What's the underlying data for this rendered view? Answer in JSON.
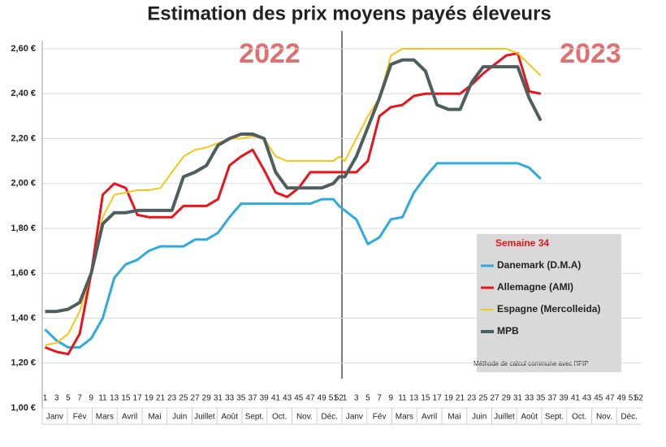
{
  "chart_data": {
    "type": "line",
    "title": "Estimation des prix moyens payés éleveurs",
    "years": [
      "2022",
      "2023"
    ],
    "categories": [
      "1",
      "3",
      "5",
      "7",
      "9",
      "11",
      "13",
      "15",
      "17",
      "19",
      "21",
      "23",
      "25",
      "27",
      "29",
      "31",
      "33",
      "35",
      "37",
      "39",
      "41",
      "43",
      "45",
      "47",
      "49",
      "51",
      "52",
      "1",
      "3",
      "5",
      "7",
      "9",
      "11",
      "13",
      "15",
      "17",
      "19",
      "21",
      "23",
      "25",
      "27",
      "29",
      "31",
      "33",
      "35",
      "37",
      "39",
      "41",
      "43",
      "45",
      "47",
      "49",
      "51",
      "52"
    ],
    "months": [
      "Janv",
      "Fév",
      "Mars",
      "Avril",
      "Mai",
      "Juin",
      "Juillet",
      "Août",
      "Sept.",
      "Oct.",
      "Nov.",
      "Déc."
    ],
    "legend_title": "Semaine 34",
    "note": "Méthode de calcul commune avec l'IFIP",
    "series": [
      {
        "name": "Danemark (D.M.A)",
        "color": "#2eaadc",
        "width": 3,
        "values": [
          1.35,
          1.3,
          1.27,
          1.27,
          1.31,
          1.4,
          1.58,
          1.64,
          1.66,
          1.7,
          1.72,
          1.72,
          1.72,
          1.75,
          1.75,
          1.78,
          1.85,
          1.91,
          1.91,
          1.91,
          1.91,
          1.91,
          1.91,
          1.91,
          1.93,
          1.93,
          1.9,
          1.88,
          1.84,
          1.73,
          1.76,
          1.84,
          1.85,
          1.96,
          2.03,
          2.09,
          2.09,
          2.09,
          2.09,
          2.09,
          2.09,
          2.09,
          2.09,
          2.07,
          2.02,
          null,
          null,
          null,
          null,
          null,
          null,
          null,
          null,
          null
        ]
      },
      {
        "name": "Allemagne (AMI)",
        "color": "#e8141c",
        "width": 3,
        "values": [
          1.27,
          1.25,
          1.24,
          1.33,
          1.6,
          1.95,
          2.0,
          1.98,
          1.86,
          1.85,
          1.85,
          1.85,
          1.9,
          1.9,
          1.9,
          1.93,
          2.08,
          2.12,
          2.15,
          2.06,
          1.96,
          1.94,
          1.98,
          2.05,
          2.05,
          2.05,
          2.05,
          2.05,
          2.05,
          2.1,
          2.3,
          2.34,
          2.35,
          2.39,
          2.4,
          2.4,
          2.4,
          2.4,
          2.44,
          2.49,
          2.53,
          2.57,
          2.58,
          2.41,
          2.4,
          null,
          null,
          null,
          null,
          null,
          null,
          null,
          null,
          null
        ]
      },
      {
        "name": "Espagne (Mercolleida)",
        "color": "#f5c518",
        "width": 2,
        "values": [
          1.28,
          1.29,
          1.33,
          1.43,
          1.6,
          1.85,
          1.95,
          1.96,
          1.97,
          1.97,
          1.98,
          2.05,
          2.12,
          2.15,
          2.16,
          2.18,
          2.2,
          2.2,
          2.21,
          2.2,
          2.12,
          2.1,
          2.1,
          2.1,
          2.1,
          2.1,
          2.12,
          2.1,
          2.2,
          2.3,
          2.38,
          2.57,
          2.6,
          2.6,
          2.6,
          2.6,
          2.6,
          2.6,
          2.6,
          2.6,
          2.6,
          2.6,
          2.58,
          2.53,
          2.48,
          null,
          null,
          null,
          null,
          null,
          null,
          null,
          null,
          null
        ]
      },
      {
        "name": "MPB",
        "color": "#4d5e5e",
        "width": 4,
        "values": [
          1.43,
          1.43,
          1.44,
          1.47,
          1.6,
          1.82,
          1.87,
          1.87,
          1.88,
          1.88,
          1.88,
          1.88,
          2.03,
          2.05,
          2.08,
          2.17,
          2.2,
          2.22,
          2.22,
          2.2,
          2.05,
          1.98,
          1.98,
          1.98,
          1.98,
          2.0,
          2.03,
          2.03,
          2.12,
          2.25,
          2.38,
          2.53,
          2.55,
          2.55,
          2.5,
          2.35,
          2.33,
          2.33,
          2.45,
          2.52,
          2.52,
          2.52,
          2.52,
          2.38,
          2.28,
          null,
          null,
          null,
          null,
          null,
          null,
          null,
          null,
          null
        ]
      }
    ],
    "ylim": [
      1.0,
      2.6
    ],
    "yticks": [
      {
        "value": 1.0,
        "label": "1,00 €"
      },
      {
        "value": 1.2,
        "label": "1,20 €"
      },
      {
        "value": 1.4,
        "label": "1,40 €"
      },
      {
        "value": 1.6,
        "label": "1,60 €"
      },
      {
        "value": 1.8,
        "label": "1,80 €"
      },
      {
        "value": 2.0,
        "label": "2,00 €"
      },
      {
        "value": 2.2,
        "label": "2,20 €"
      },
      {
        "value": 2.4,
        "label": "2,40 €"
      },
      {
        "value": 2.6,
        "label": "2,60 €"
      }
    ],
    "grid": true
  }
}
